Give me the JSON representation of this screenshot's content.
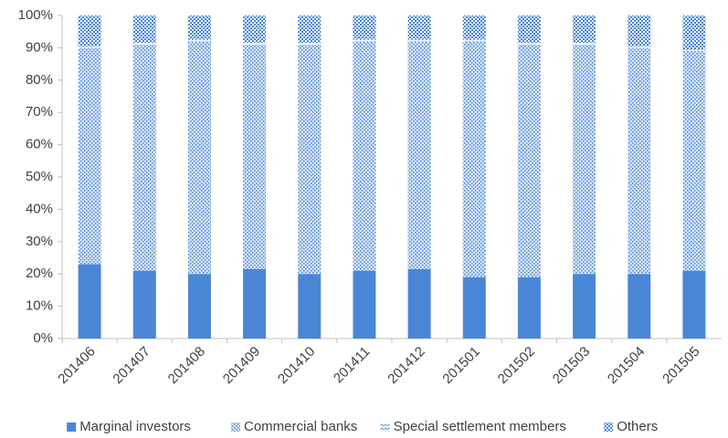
{
  "chart_data": {
    "type": "stacked_bar_100",
    "categories": [
      "201406",
      "201407",
      "201408",
      "201409",
      "201410",
      "201411",
      "201412",
      "201501",
      "201502",
      "201503",
      "201504",
      "201505"
    ],
    "series": [
      {
        "name": "Marginal investors",
        "color": "#4a86d6",
        "pattern": "solid",
        "values": [
          23,
          21,
          20,
          21.5,
          20,
          21,
          21.5,
          19,
          19,
          20,
          20,
          21
        ]
      },
      {
        "name": "Commercial banks",
        "color": "#4a86d6",
        "pattern": "dots",
        "values": [
          67,
          70,
          72,
          69.5,
          71,
          71,
          70.5,
          73,
          72,
          71,
          70,
          68
        ]
      },
      {
        "name": "Special settlement members",
        "color": "#4a86d6",
        "pattern": "waves",
        "values": [
          0.5,
          0.5,
          0.5,
          0.5,
          0.5,
          0.5,
          0.5,
          0.5,
          0.5,
          0.5,
          0.5,
          0.5
        ]
      },
      {
        "name": "Others",
        "color": "#4a86d6",
        "pattern": "checker",
        "values": [
          9.5,
          8.5,
          7.5,
          8.5,
          8.5,
          7.5,
          7.5,
          7.5,
          8.5,
          8.5,
          9.5,
          10.5
        ]
      }
    ],
    "ylim": [
      0,
      100
    ],
    "yticks": [
      {
        "value": 0,
        "label": "0%"
      },
      {
        "value": 10,
        "label": "10%"
      },
      {
        "value": 20,
        "label": "20%"
      },
      {
        "value": 30,
        "label": "30%"
      },
      {
        "value": 40,
        "label": "40%"
      },
      {
        "value": 50,
        "label": "50%"
      },
      {
        "value": 60,
        "label": "60%"
      },
      {
        "value": 70,
        "label": "70%"
      },
      {
        "value": 80,
        "label": "80%"
      },
      {
        "value": 90,
        "label": "90%"
      },
      {
        "value": 100,
        "label": "100%"
      }
    ],
    "grid": false,
    "legend": "bottom"
  }
}
